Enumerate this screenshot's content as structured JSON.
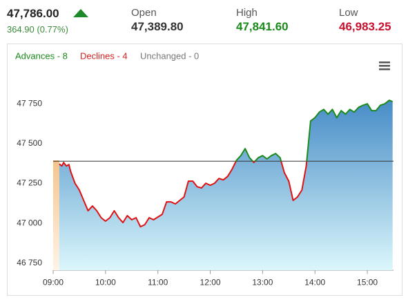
{
  "header": {
    "price": "47,786.00",
    "change": "364.90 (0.77%)",
    "stats": [
      {
        "label": "Open",
        "value": "47,389.80",
        "color": "#333333"
      },
      {
        "label": "High",
        "value": "47,841.60",
        "color": "#1a8a1a"
      },
      {
        "label": "Low",
        "value": "46,983.25",
        "color": "#c8102e"
      }
    ]
  },
  "legend": [
    {
      "text": "Advances - 8",
      "color": "#1a8a1a"
    },
    {
      "text": "Declines - 4",
      "color": "#d42020"
    },
    {
      "text": "Unchanged - 0",
      "color": "#777777"
    }
  ],
  "chart_data": {
    "type": "line",
    "x": [
      "09:07",
      "09:10",
      "09:12",
      "09:15",
      "09:18",
      "09:20",
      "09:25",
      "09:30",
      "09:35",
      "09:40",
      "09:45",
      "09:50",
      "09:55",
      "10:00",
      "10:05",
      "10:10",
      "10:15",
      "10:20",
      "10:25",
      "10:30",
      "10:35",
      "10:40",
      "10:45",
      "10:50",
      "10:55",
      "11:00",
      "11:05",
      "11:10",
      "11:15",
      "11:20",
      "11:25",
      "11:30",
      "11:35",
      "11:40",
      "11:45",
      "11:50",
      "11:55",
      "12:00",
      "12:05",
      "12:10",
      "12:15",
      "12:20",
      "12:25",
      "12:30",
      "12:35",
      "12:40",
      "12:45",
      "12:50",
      "12:55",
      "13:00",
      "13:05",
      "13:10",
      "13:15",
      "13:20",
      "13:25",
      "13:30",
      "13:35",
      "13:40",
      "13:45",
      "13:50",
      "13:55",
      "14:00",
      "14:05",
      "14:10",
      "14:15",
      "14:20",
      "14:25",
      "14:30",
      "14:35",
      "14:40",
      "14:45",
      "14:50",
      "14:55",
      "15:00",
      "15:05",
      "15:10",
      "15:15",
      "15:20",
      "15:25",
      "15:29"
    ],
    "values": [
      47373,
      47360,
      47382,
      47360,
      47369,
      47326,
      47252,
      47209,
      47144,
      47079,
      47109,
      47079,
      47036,
      47014,
      47036,
      47079,
      47036,
      47005,
      47049,
      47023,
      47036,
      46979,
      46992,
      47036,
      47023,
      47040,
      47057,
      47135,
      47135,
      47122,
      47144,
      47166,
      47265,
      47265,
      47230,
      47222,
      47252,
      47239,
      47252,
      47282,
      47273,
      47295,
      47339,
      47395,
      47425,
      47469,
      47412,
      47382,
      47412,
      47425,
      47404,
      47425,
      47438,
      47412,
      47317,
      47265,
      47144,
      47166,
      47209,
      47360,
      47642,
      47663,
      47698,
      47715,
      47685,
      47715,
      47663,
      47707,
      47685,
      47715,
      47698,
      47728,
      47741,
      47750,
      47707,
      47707,
      47741,
      47750,
      47772,
      47763
    ],
    "baseline": 47390,
    "up_color": "#1a8a1a",
    "down_color": "#e01010",
    "xlim": [
      "09:00",
      "15:30"
    ],
    "xticks": [
      "09:00",
      "10:00",
      "11:00",
      "12:00",
      "13:00",
      "14:00",
      "15:00"
    ],
    "ylim": [
      46700,
      48000
    ],
    "yticks": [
      {
        "value": 46750,
        "label": "46 750"
      },
      {
        "value": 47000,
        "label": "47 000"
      },
      {
        "value": 47250,
        "label": "47 250"
      },
      {
        "value": 47500,
        "label": "47 500"
      },
      {
        "value": 47750,
        "label": "47 750"
      }
    ]
  }
}
